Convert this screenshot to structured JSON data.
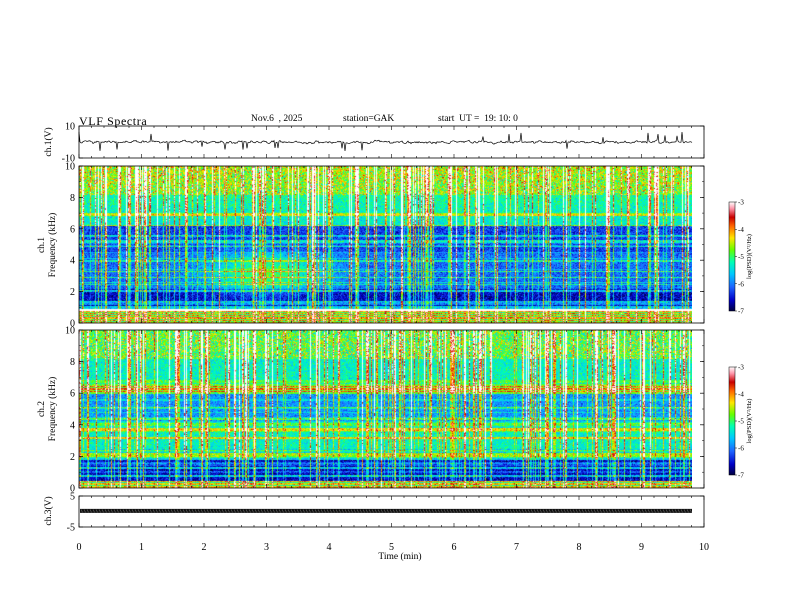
{
  "header": {
    "title": "VLF Spectra",
    "date": "Nov.6  , 2025",
    "station": "station=GAK",
    "start_time": "start  UT =  19: 10: 0"
  },
  "chart_data": [
    {
      "type": "line",
      "name": "ch1-waveform",
      "ylabel": "ch.1(V)",
      "ylim": [
        -10,
        10
      ],
      "yticks": [
        "10",
        "-10"
      ],
      "xlim": [
        0,
        10
      ]
    },
    {
      "type": "heatmap",
      "name": "ch1-spectrogram",
      "ylabel": "ch.1\nFrequency (kHz)",
      "ylabel_lines": [
        "ch.1",
        "Frequency (kHz)"
      ],
      "ylim": [
        0,
        10
      ],
      "yticks": [
        "10",
        "8",
        "6",
        "4",
        "2",
        "0"
      ],
      "xlim": [
        0,
        10
      ],
      "colorbar": {
        "label": "log(PSD)(V²/Hz)",
        "range": [
          -7,
          -3
        ],
        "ticks": [
          "-3",
          "-4",
          "-5",
          "-6",
          "-7"
        ]
      }
    },
    {
      "type": "heatmap",
      "name": "ch2-spectrogram",
      "ylabel": "ch.2\nFrequency (kHz)",
      "ylabel_lines": [
        "ch.2",
        "Frequency (kHz)"
      ],
      "ylim": [
        0,
        10
      ],
      "yticks": [
        "10",
        "8",
        "6",
        "4",
        "2",
        "0"
      ],
      "xlim": [
        0,
        10
      ],
      "colorbar": {
        "label": "log(PSD)(V²/Hz)",
        "range": [
          -7,
          -3
        ],
        "ticks": [
          "-3",
          "-4",
          "-5",
          "-6",
          "-7"
        ]
      }
    },
    {
      "type": "line",
      "name": "ch3-waveform",
      "ylabel": "ch.3(V)",
      "ylim": [
        -5,
        5
      ],
      "yticks": [
        "5",
        "-5"
      ],
      "xlim": [
        0,
        10
      ],
      "xlabel": "Time  (min)",
      "xticks": [
        "0",
        "1",
        "2",
        "3",
        "4",
        "5",
        "6",
        "7",
        "8",
        "9",
        "10"
      ]
    }
  ],
  "colors": {
    "axis": "#000000",
    "colormap": [
      "#000040",
      "#0000c8",
      "#1e64ff",
      "#00c8ff",
      "#00ffb4",
      "#64ff00",
      "#ffe600",
      "#ff6400",
      "#c80000",
      "#ff96aa",
      "#ffffff"
    ]
  }
}
